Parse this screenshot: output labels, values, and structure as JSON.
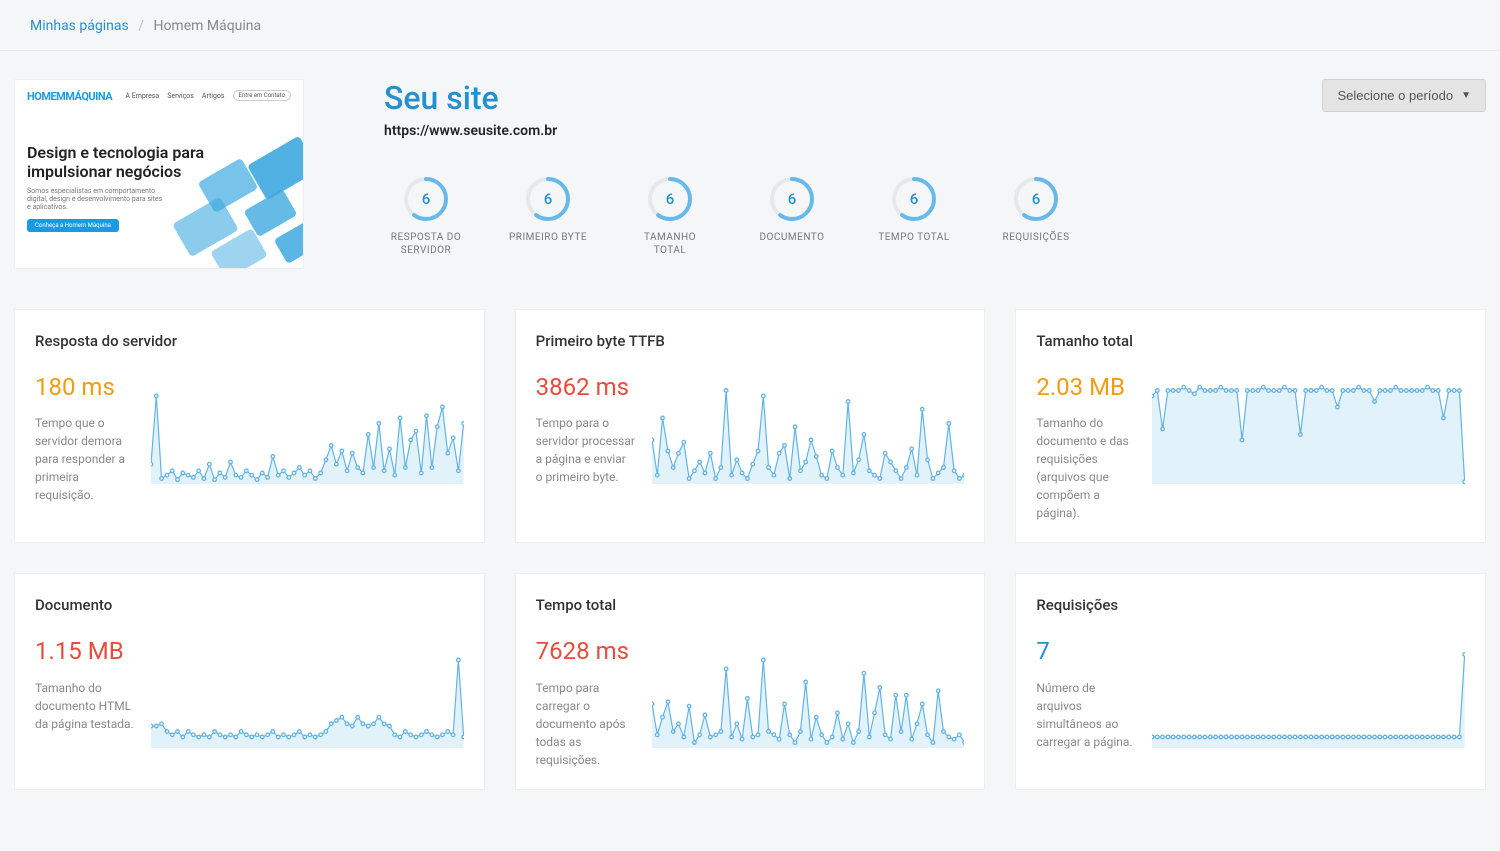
{
  "breadcrumb": {
    "home": "Minhas páginas",
    "current": "Homem Máquina"
  },
  "thumbnail": {
    "logo": "HOMEMMÁQUINA",
    "nav": [
      "A Empresa",
      "Serviços",
      "Artigos"
    ],
    "nav_button": "Entre em Contato",
    "headline": "Design e tecnologia para impulsionar negócios",
    "subtext": "Somos especialistas em comportamento digital, design e desenvolvimento para sites e aplicativos.",
    "cta": "Conheça a Homem Máquina"
  },
  "site": {
    "title": "Seu site",
    "url": "https://www.seusite.com.br"
  },
  "period_selector": "Selecione o período",
  "colors": {
    "link": "#2390d0",
    "orange": "#f39c12",
    "red": "#e74c3c",
    "chart_stroke": "#5fb3e6",
    "chart_fill": "#d6edf9",
    "background": "#f5f6f7",
    "card_bg": "#ffffff"
  },
  "metrics": [
    {
      "value": "6",
      "label": "RESPOSTA DO SERVIDOR",
      "progress": 0.6
    },
    {
      "value": "6",
      "label": "PRIMEIRO BYTE",
      "progress": 0.6
    },
    {
      "value": "6",
      "label": "TAMANHO TOTAL",
      "progress": 0.6
    },
    {
      "value": "6",
      "label": "DOCUMENTO",
      "progress": 0.6
    },
    {
      "value": "6",
      "label": "TEMPO TOTAL",
      "progress": 0.6
    },
    {
      "value": "6",
      "label": "REQUISIÇÕES",
      "progress": 0.6
    }
  ],
  "cards": [
    {
      "title": "Resposta do servidor",
      "value": "180 ms",
      "color": "orange",
      "desc": "Tempo que o servidor demora para responder a primeira requisição.",
      "chart": {
        "points": [
          82,
          20,
          95,
          92,
          88,
          96,
          90,
          92,
          94,
          88,
          95,
          82,
          96,
          90,
          94,
          80,
          92,
          94,
          88,
          92,
          96,
          90,
          94,
          75,
          92,
          88,
          94,
          90,
          85,
          92,
          88,
          95,
          90,
          78,
          65,
          82,
          70,
          88,
          72,
          85,
          90,
          55,
          85,
          45,
          88,
          68,
          92,
          40,
          85,
          60,
          52,
          90,
          38,
          85,
          48,
          30,
          72,
          58,
          88,
          45
        ]
      }
    },
    {
      "title": "Primeiro byte TTFB",
      "value": "3862 ms",
      "color": "red",
      "desc": "Tempo para o servidor processar a página e enviar o primeiro byte.",
      "chart": {
        "points": [
          60,
          92,
          40,
          70,
          85,
          72,
          62,
          95,
          88,
          80,
          90,
          72,
          95,
          85,
          15,
          92,
          78,
          90,
          95,
          82,
          70,
          20,
          85,
          92,
          72,
          65,
          95,
          48,
          88,
          80,
          60,
          75,
          92,
          95,
          70,
          85,
          92,
          25,
          90,
          78,
          55,
          88,
          92,
          95,
          72,
          80,
          88,
          95,
          85,
          68,
          92,
          32,
          78,
          95,
          90,
          85,
          45,
          88,
          95,
          92
        ]
      }
    },
    {
      "title": "Tamanho total",
      "value": "2.03 MB",
      "color": "orange",
      "desc": "Tamanho do documento e das requisições (arquivos que compõem a página).",
      "chart": {
        "points": [
          20,
          15,
          50,
          15,
          15,
          15,
          12,
          15,
          18,
          12,
          15,
          15,
          15,
          12,
          15,
          15,
          15,
          60,
          15,
          15,
          15,
          12,
          15,
          15,
          15,
          12,
          15,
          15,
          55,
          15,
          15,
          15,
          12,
          15,
          15,
          30,
          15,
          15,
          15,
          12,
          15,
          15,
          25,
          15,
          15,
          15,
          12,
          15,
          15,
          15,
          15,
          15,
          12,
          15,
          15,
          40,
          15,
          15,
          15,
          98
        ]
      }
    },
    {
      "title": "Documento",
      "value": "1.15 MB",
      "color": "red",
      "desc": "Tamanho do documento HTML da página testada.",
      "chart": {
        "points": [
          80,
          80,
          78,
          85,
          88,
          85,
          90,
          85,
          88,
          90,
          88,
          90,
          85,
          88,
          90,
          88,
          90,
          85,
          88,
          90,
          88,
          90,
          88,
          85,
          90,
          88,
          90,
          88,
          85,
          90,
          88,
          90,
          88,
          85,
          78,
          75,
          72,
          78,
          80,
          72,
          78,
          80,
          78,
          72,
          78,
          80,
          88,
          90,
          85,
          88,
          90,
          88,
          85,
          88,
          90,
          88,
          85,
          88,
          20,
          90
        ]
      }
    },
    {
      "title": "Tempo total",
      "value": "7628 ms",
      "color": "red",
      "desc": "Tempo para carregar o documento após todas as requisições.",
      "chart": {
        "points": [
          60,
          88,
          72,
          58,
          85,
          78,
          90,
          62,
          95,
          88,
          70,
          90,
          88,
          85,
          28,
          90,
          78,
          92,
          55,
          90,
          88,
          20,
          85,
          88,
          92,
          60,
          88,
          95,
          85,
          40,
          92,
          72,
          88,
          95,
          90,
          68,
          92,
          78,
          95,
          85,
          32,
          90,
          68,
          45,
          88,
          92,
          52,
          85,
          52,
          92,
          78,
          60,
          88,
          95,
          48,
          85,
          90,
          92,
          88,
          95
        ]
      }
    },
    {
      "title": "Requisições",
      "value": "7",
      "color": "blue",
      "desc": "Número de arquivos simultâneos ao carregar a página.",
      "chart": {
        "points": [
          90,
          90,
          90,
          90,
          90,
          90,
          90,
          90,
          90,
          90,
          90,
          90,
          90,
          90,
          90,
          90,
          90,
          90,
          90,
          90,
          90,
          90,
          90,
          90,
          90,
          90,
          90,
          90,
          90,
          90,
          90,
          90,
          90,
          90,
          90,
          90,
          90,
          90,
          90,
          90,
          90,
          90,
          90,
          90,
          90,
          90,
          90,
          90,
          90,
          90,
          90,
          90,
          90,
          90,
          90,
          90,
          90,
          90,
          90,
          15
        ]
      }
    }
  ]
}
